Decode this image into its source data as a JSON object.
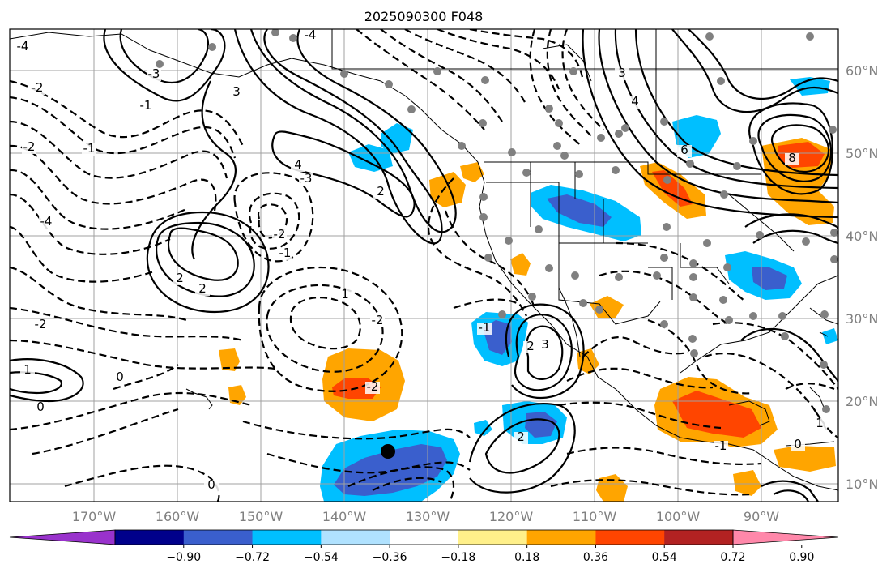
{
  "title": "2025090300 F048",
  "lat_labels": [
    "60°N",
    "50°N",
    "40°N",
    "30°N",
    "20°N",
    "10°N"
  ],
  "lon_labels": [
    "170°W",
    "160°W",
    "150°W",
    "140°W",
    "130°W",
    "120°W",
    "110°W",
    "100°W",
    "90°W"
  ],
  "colorbar": {
    "ticks": [
      "−0.90",
      "−0.72",
      "−0.54",
      "−0.36",
      "−0.18",
      "0.18",
      "0.36",
      "0.54",
      "0.72",
      "0.90"
    ],
    "colors": [
      "#9932cc",
      "#00008b",
      "#3a5fcd",
      "#00bfff",
      "#b0e2ff",
      "#ffffff",
      "#fff08a",
      "#ffa500",
      "#ff4500",
      "#b22222",
      "#ff88aa"
    ]
  },
  "contour_labels": [
    "-4",
    "-4",
    "-2",
    "-2",
    "-1",
    "-1",
    "-3",
    "-4",
    "-3",
    "4",
    "3",
    "2",
    "2",
    "-2",
    "2",
    "3",
    "4",
    "6",
    "8",
    "-1",
    "-2",
    "-2",
    "1",
    "0",
    "-2",
    "0",
    "2",
    "2",
    "3",
    "-1",
    "1",
    "0",
    "1",
    "-1",
    "0"
  ]
}
